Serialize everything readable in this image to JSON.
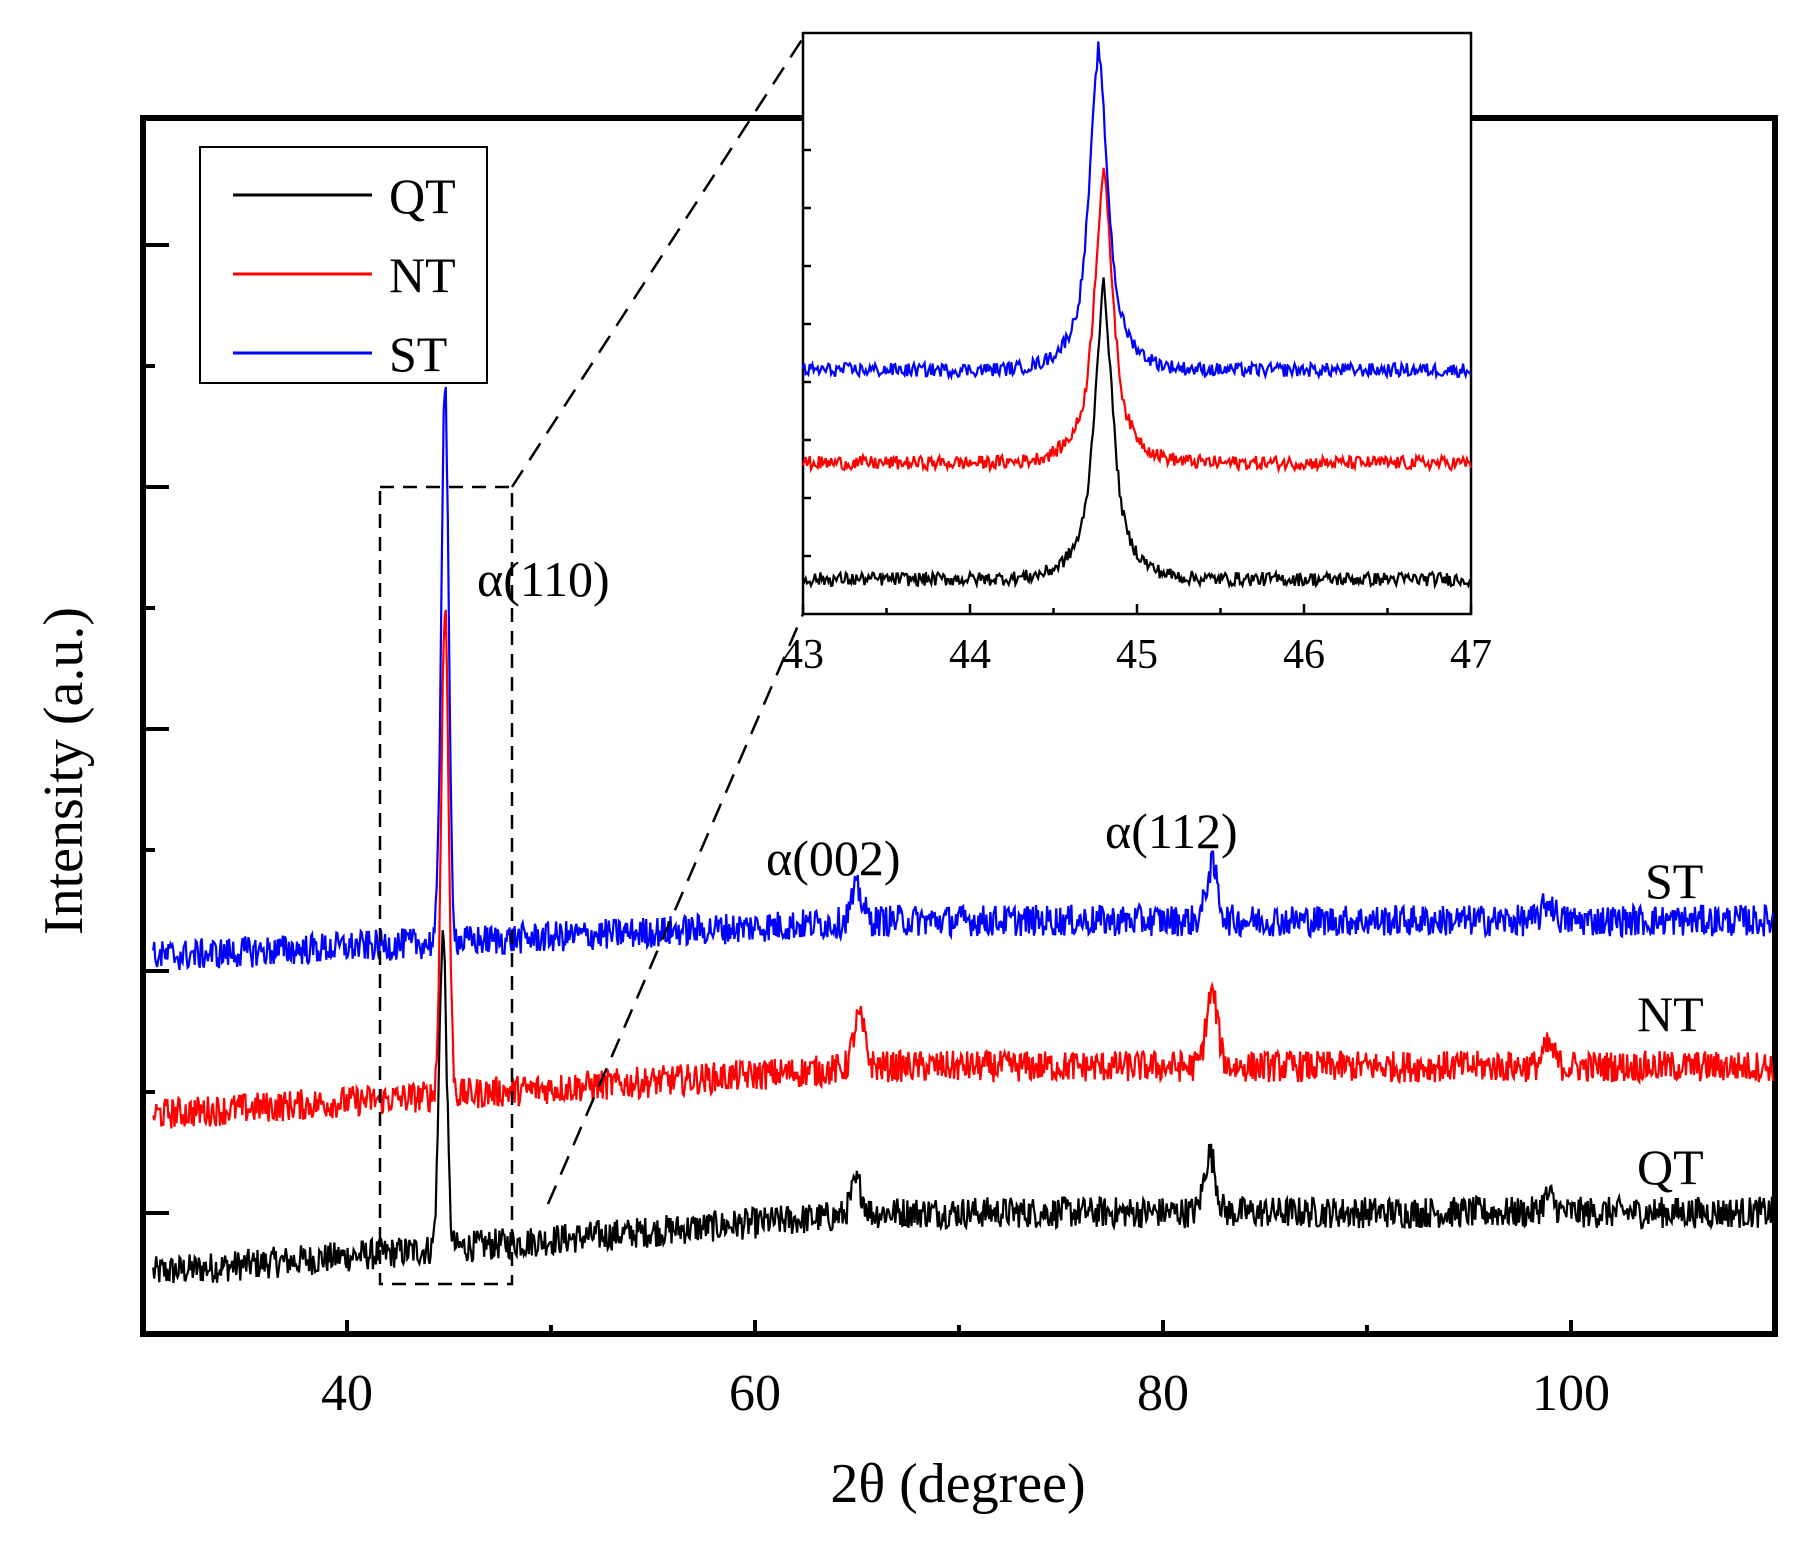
{
  "chart_data": [
    {
      "panel": "main",
      "type": "line",
      "xlabel": "2θ (degree)",
      "ylabel": "Intensity (a.u.)",
      "xlim": [
        30,
        110
      ],
      "ylim": [
        0,
        100
      ],
      "x_ticks": [
        40,
        60,
        80,
        100
      ],
      "x_tick_labels": [
        "40",
        "60",
        "80",
        "100"
      ],
      "y_tick_labels_shown": false,
      "grid": false,
      "legend_position": "top-left",
      "legend": [
        "QT",
        "NT",
        "ST"
      ],
      "colors": {
        "QT": "#000000",
        "NT": "#ff0000",
        "ST": "#0000ff"
      },
      "series": [
        {
          "name": "QT",
          "color": "#000000",
          "baseline_start": 5,
          "baseline_end": 10,
          "label_text": "QT",
          "peaks": [
            {
              "x": 44.7,
              "y": 33
            },
            {
              "x": 65.0,
              "y": 12.4
            },
            {
              "x": 82.3,
              "y": 14.8
            },
            {
              "x": 98.9,
              "y": 11.3
            }
          ]
        },
        {
          "name": "NT",
          "color": "#ff0000",
          "baseline_start": 18,
          "baseline_end": 22,
          "label_text": "NT",
          "peaks": [
            {
              "x": 44.8,
              "y": 60
            },
            {
              "x": 65.1,
              "y": 26
            },
            {
              "x": 82.4,
              "y": 28
            },
            {
              "x": 98.9,
              "y": 23.6
            }
          ]
        },
        {
          "name": "ST",
          "color": "#0000ff",
          "baseline_start": 31,
          "baseline_end": 34,
          "label_text": "ST",
          "peaks": [
            {
              "x": 44.8,
              "y": 78
            },
            {
              "x": 65.0,
              "y": 36.5
            },
            {
              "x": 82.4,
              "y": 38.5
            },
            {
              "x": 98.9,
              "y": 35.5
            }
          ]
        }
      ],
      "annotations": [
        "α(110)",
        "α(002)",
        "α(112)"
      ]
    },
    {
      "panel": "inset",
      "type": "line",
      "xlim": [
        43,
        47
      ],
      "ylim": [
        0,
        100
      ],
      "x_ticks": [
        43,
        44,
        45,
        46,
        47
      ],
      "x_tick_labels": [
        "43",
        "44",
        "45",
        "46",
        "47"
      ],
      "zoom_region_main_x": [
        41.5,
        48
      ],
      "series": [
        {
          "name": "QT",
          "color": "#000000",
          "baseline": 6,
          "peak_x": 44.8,
          "peak_y": 57
        },
        {
          "name": "NT",
          "color": "#ff0000",
          "baseline": 26,
          "peak_x": 44.8,
          "peak_y": 77
        },
        {
          "name": "ST",
          "color": "#0000ff",
          "baseline": 42,
          "peak_x": 44.77,
          "peak_y": 98
        }
      ]
    }
  ]
}
